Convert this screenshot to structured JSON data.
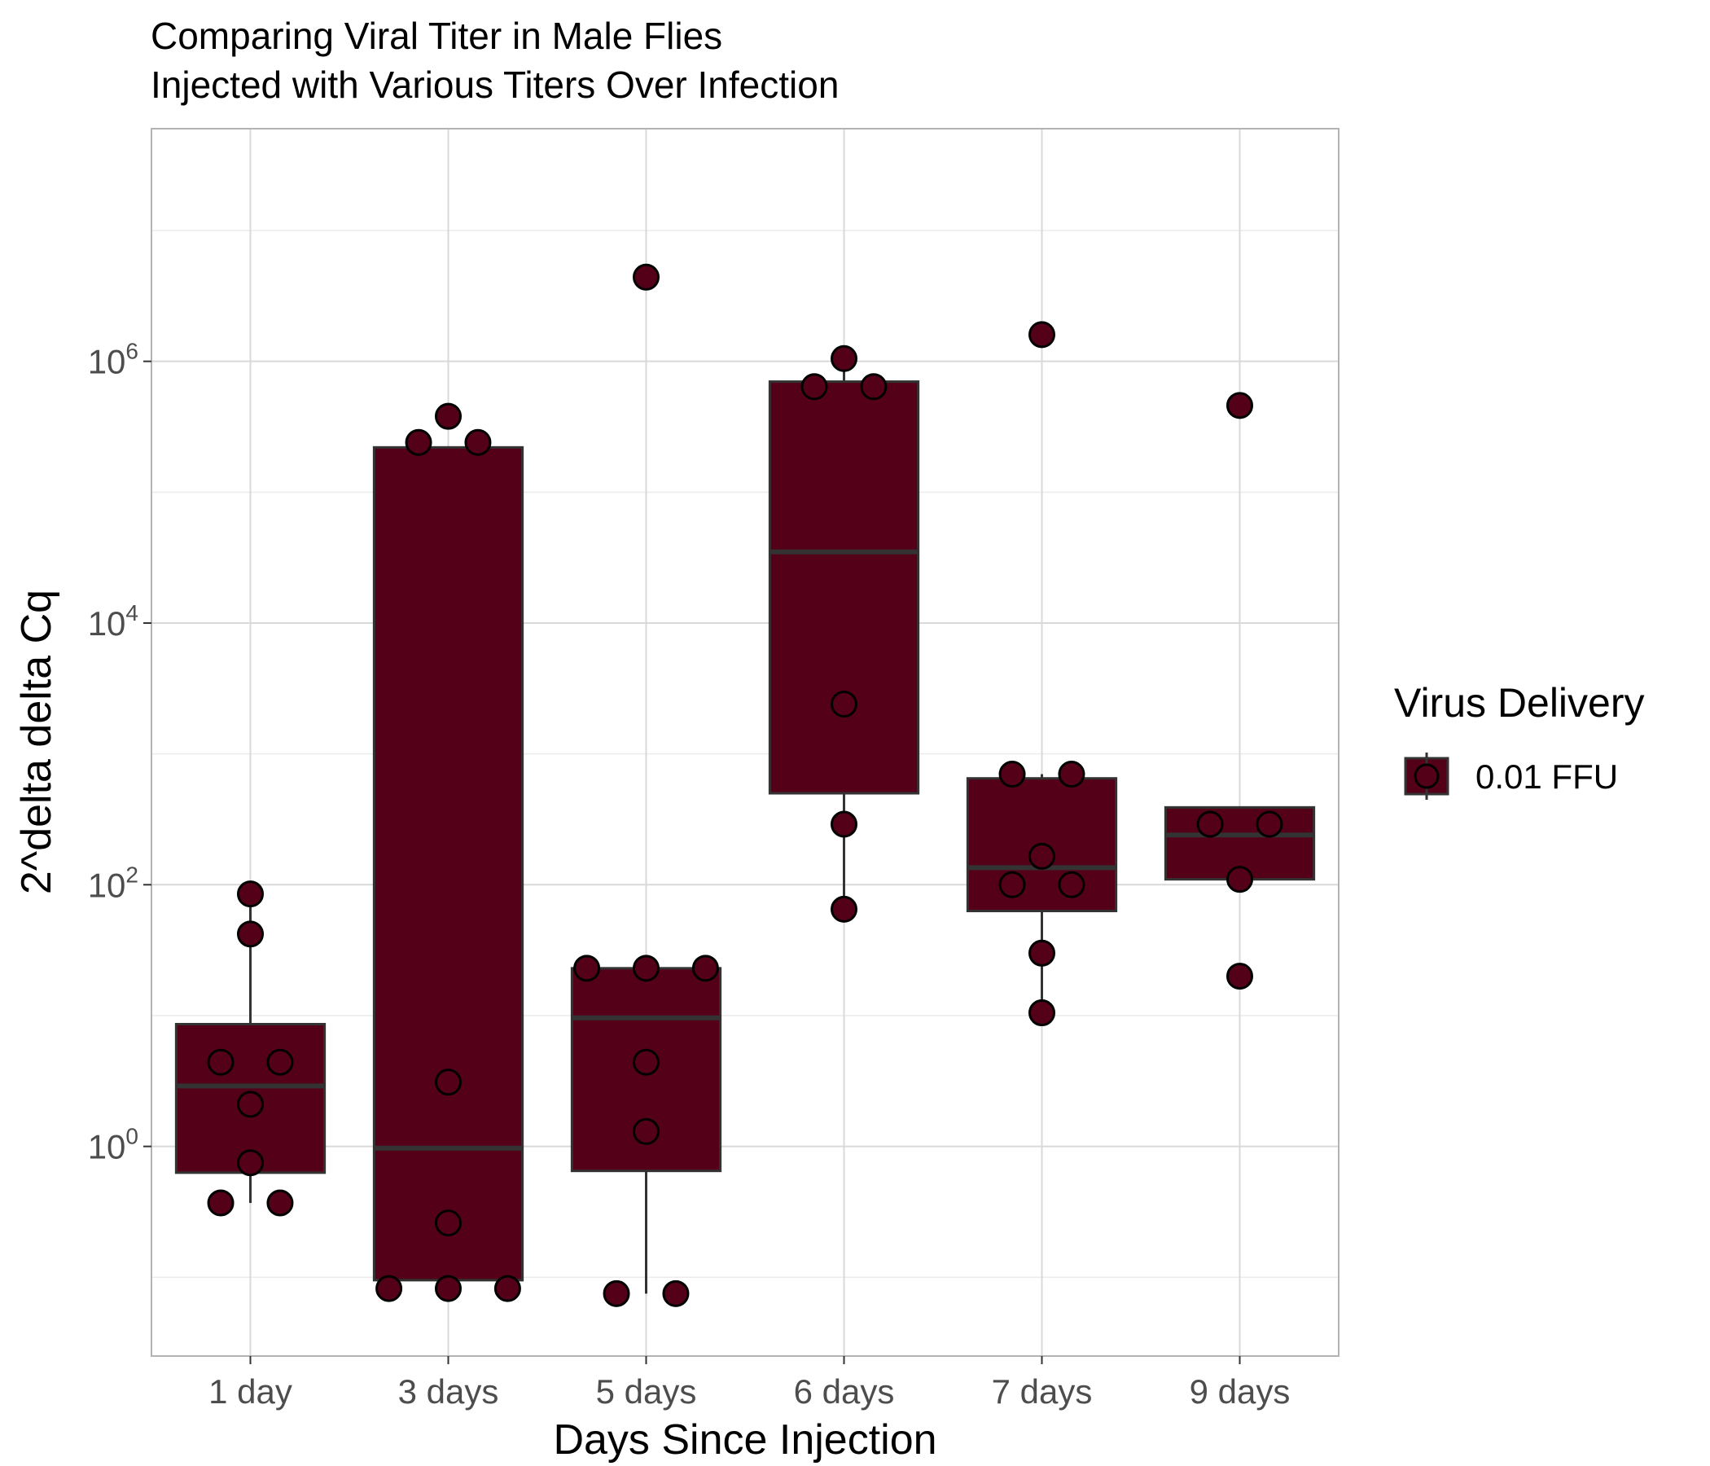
{
  "chart_data": {
    "type": "box",
    "title_lines": [
      "Comparing Viral Titer in Male Flies",
      "Injected with Various Titers Over Infection"
    ],
    "xlabel": "Days Since Injection",
    "ylabel": "2^delta delta Cq",
    "y_scale": "log10",
    "ylim": [
      0.025,
      60000000
    ],
    "y_ticks": [
      1,
      100,
      10000,
      1000000
    ],
    "y_tick_labels": [
      {
        "base": "10",
        "exp": "0"
      },
      {
        "base": "10",
        "exp": "2"
      },
      {
        "base": "10",
        "exp": "4"
      },
      {
        "base": "10",
        "exp": "6"
      }
    ],
    "grid": true,
    "legend": {
      "title": "Virus Delivery",
      "position": "right",
      "entries": [
        {
          "label": "0.01 FFU",
          "color": "#550019"
        }
      ]
    },
    "fill_color": "#550019",
    "categories": [
      "1 day",
      "3 days",
      "5 days",
      "6 days",
      "7 days",
      "9 days"
    ],
    "boxes": [
      {
        "category": "1 day",
        "whisker_low": 0.37,
        "q1": 0.63,
        "median": 2.9,
        "q3": 8.6,
        "whisker_high": 85
      },
      {
        "category": "3 days",
        "whisker_low": 0.09,
        "q1": 0.095,
        "median": 0.97,
        "q3": 220000,
        "whisker_high": 220000
      },
      {
        "category": "5 days",
        "whisker_low": 0.075,
        "q1": 0.65,
        "median": 9.6,
        "q3": 23,
        "whisker_high": 23
      },
      {
        "category": "6 days",
        "whisker_low": 65,
        "q1": 500,
        "median": 35000,
        "q3": 700000,
        "whisker_high": 1050000
      },
      {
        "category": "7 days",
        "whisker_low": 10.5,
        "q1": 63,
        "median": 135,
        "q3": 650,
        "whisker_high": 700
      },
      {
        "category": "9 days",
        "whisker_low": 110,
        "q1": 110,
        "median": 240,
        "q3": 390,
        "whisker_high": 390
      }
    ],
    "points": [
      {
        "category": "1 day",
        "y": 85,
        "dx": 0
      },
      {
        "category": "1 day",
        "y": 42,
        "dx": 0
      },
      {
        "category": "1 day",
        "y": 4.4,
        "dx": -0.15
      },
      {
        "category": "1 day",
        "y": 4.4,
        "dx": 0.15
      },
      {
        "category": "1 day",
        "y": 2.1,
        "dx": 0
      },
      {
        "category": "1 day",
        "y": 0.75,
        "dx": 0
      },
      {
        "category": "1 day",
        "y": 0.37,
        "dx": -0.15
      },
      {
        "category": "1 day",
        "y": 0.37,
        "dx": 0.15
      },
      {
        "category": "3 days",
        "y": 380000,
        "dx": 0
      },
      {
        "category": "3 days",
        "y": 240000,
        "dx": -0.15
      },
      {
        "category": "3 days",
        "y": 240000,
        "dx": 0.15
      },
      {
        "category": "3 days",
        "y": 3.1,
        "dx": 0
      },
      {
        "category": "3 days",
        "y": 0.26,
        "dx": 0
      },
      {
        "category": "3 days",
        "y": 0.082,
        "dx": -0.3
      },
      {
        "category": "3 days",
        "y": 0.082,
        "dx": 0
      },
      {
        "category": "3 days",
        "y": 0.082,
        "dx": 0.3
      },
      {
        "category": "5 days",
        "y": 4400000,
        "dx": 0
      },
      {
        "category": "5 days",
        "y": 23,
        "dx": -0.3
      },
      {
        "category": "5 days",
        "y": 23,
        "dx": 0
      },
      {
        "category": "5 days",
        "y": 23,
        "dx": 0.3
      },
      {
        "category": "5 days",
        "y": 4.4,
        "dx": 0
      },
      {
        "category": "5 days",
        "y": 1.3,
        "dx": 0
      },
      {
        "category": "5 days",
        "y": 0.075,
        "dx": -0.15
      },
      {
        "category": "5 days",
        "y": 0.075,
        "dx": 0.15
      },
      {
        "category": "6 days",
        "y": 1050000,
        "dx": 0
      },
      {
        "category": "6 days",
        "y": 640000,
        "dx": -0.15
      },
      {
        "category": "6 days",
        "y": 640000,
        "dx": 0.15
      },
      {
        "category": "6 days",
        "y": 2400,
        "dx": 0
      },
      {
        "category": "6 days",
        "y": 290,
        "dx": 0
      },
      {
        "category": "6 days",
        "y": 65,
        "dx": 0
      },
      {
        "category": "7 days",
        "y": 1600000,
        "dx": 0
      },
      {
        "category": "7 days",
        "y": 700,
        "dx": -0.15
      },
      {
        "category": "7 days",
        "y": 700,
        "dx": 0.15
      },
      {
        "category": "7 days",
        "y": 165,
        "dx": 0
      },
      {
        "category": "7 days",
        "y": 100,
        "dx": -0.15
      },
      {
        "category": "7 days",
        "y": 100,
        "dx": 0.15
      },
      {
        "category": "7 days",
        "y": 30,
        "dx": 0
      },
      {
        "category": "7 days",
        "y": 10.5,
        "dx": 0
      },
      {
        "category": "9 days",
        "y": 460000,
        "dx": 0
      },
      {
        "category": "9 days",
        "y": 290,
        "dx": -0.15
      },
      {
        "category": "9 days",
        "y": 290,
        "dx": 0.15
      },
      {
        "category": "9 days",
        "y": 110,
        "dx": 0
      },
      {
        "category": "9 days",
        "y": 20,
        "dx": 0
      }
    ]
  }
}
